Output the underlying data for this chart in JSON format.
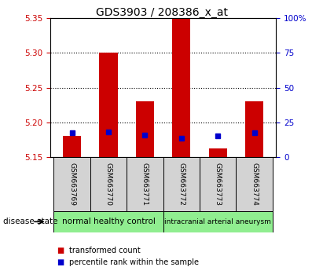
{
  "title": "GDS3903 / 208386_x_at",
  "samples": [
    "GSM663769",
    "GSM663770",
    "GSM663771",
    "GSM663772",
    "GSM663773",
    "GSM663774"
  ],
  "bar_base": 5.15,
  "bar_tops": [
    5.18,
    5.3,
    5.23,
    5.355,
    5.162,
    5.23
  ],
  "blue_values": [
    5.185,
    5.186,
    5.182,
    5.177,
    5.18,
    5.185
  ],
  "ylim": [
    5.15,
    5.35
  ],
  "yticks_left": [
    5.15,
    5.2,
    5.25,
    5.3,
    5.35
  ],
  "yticks_right": [
    0,
    25,
    50,
    75,
    100
  ],
  "yticks_right_vals": [
    5.15,
    5.2,
    5.25,
    5.3,
    5.35
  ],
  "bar_color": "#cc0000",
  "blue_color": "#0000cc",
  "group1_label": "normal healthy control",
  "group2_label": "intracranial arterial aneurysm",
  "group1_indices": [
    0,
    1,
    2
  ],
  "group2_indices": [
    3,
    4,
    5
  ],
  "group_bg_color": "#90ee90",
  "sample_bg_color": "#d3d3d3",
  "legend_red_label": "transformed count",
  "legend_blue_label": "percentile rank within the sample",
  "disease_state_label": "disease state",
  "left_axis_color": "#cc0000",
  "right_axis_color": "#0000cc",
  "bar_width": 0.5
}
